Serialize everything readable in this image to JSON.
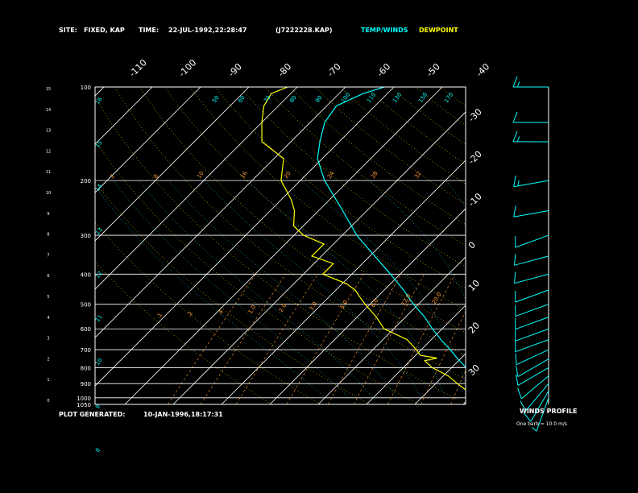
{
  "header": {
    "site_label": "SITE:",
    "site_value": "FIXED, KAP",
    "time_label": "TIME:",
    "time_value": "22-JUL-1992,22:28:47",
    "file": "(J7222228.KAP)",
    "legend_temp": "TEMP/WINDS",
    "legend_dew": "DEWPOINT"
  },
  "footer": {
    "plot_generated_label": "PLOT GENERATED:",
    "plot_generated_value": "10-JAN-1996,18:17:31"
  },
  "wind_panel": {
    "title": "WINDS PROFILE",
    "note": "One barb = 10.0 m/s"
  },
  "colors": {
    "temperature": "#00ffff",
    "dewpoint": "#ffff00",
    "grid": "#ffffff",
    "mixing_ratio": "#ff9933",
    "dry_adiabat": "#ffff00",
    "moist_adiabat": "#00ffff",
    "winds": "#00ffff"
  },
  "chart_data": {
    "type": "line",
    "title": "",
    "xlabel": "",
    "ylabel": "",
    "plot_pressure_range_mb": [
      1050,
      100
    ],
    "pressure_levels_mb": [
      1050,
      1000,
      900,
      800,
      700,
      600,
      500,
      400,
      300,
      200,
      100
    ],
    "pressure_labels": [
      "1050",
      "1000",
      "900",
      "800",
      "700",
      "600",
      "500",
      "400",
      "300",
      "200",
      "100"
    ],
    "height_km_ticks": [
      "0",
      "1",
      "2",
      "3",
      "4",
      "5",
      "6",
      "7",
      "8",
      "9",
      "10",
      "11",
      "12",
      "13",
      "14",
      "15"
    ],
    "isotherm_labels_top": [
      "-110",
      "-100",
      "-90",
      "-80",
      "-70",
      "-60",
      "-50",
      "-40"
    ],
    "isotherm_labels_right": [
      "-30",
      "-20",
      "-10",
      "0",
      "10",
      "20",
      "30"
    ],
    "mixing_ratio_labels": [
      ".1",
      ".2",
      ".4",
      "1.0",
      "2.0",
      "3.0",
      "5.0",
      "8.0",
      "12.0",
      "20.0"
    ],
    "theta_labels_left": [
      "16",
      "15",
      "14",
      "13",
      "12",
      "11",
      "10",
      "9",
      "8"
    ],
    "theta_labels_top": [
      "170",
      "150",
      "130",
      "110",
      "100",
      "90",
      "80",
      "70",
      "60",
      "50"
    ],
    "theta_labels_row200": [
      "2",
      "8",
      "10",
      "16",
      "20",
      "24",
      "28",
      "32"
    ],
    "series": [
      {
        "name": "TEMP/WINDS",
        "pressure_mb": [
          1000,
          950,
          900,
          850,
          800,
          750,
          700,
          650,
          600,
          550,
          500,
          450,
          400,
          350,
          300,
          250,
          200,
          170,
          150,
          130,
          115,
          105,
          100
        ],
        "temp_c": [
          27,
          24,
          20.5,
          16.5,
          13,
          9.5,
          6,
          2,
          -2,
          -6,
          -11,
          -16,
          -22,
          -29,
          -37,
          -45,
          -55,
          -61,
          -64,
          -67,
          -68,
          -65,
          -62
        ]
      },
      {
        "name": "DEWPOINT",
        "pressure_mb": [
          1000,
          950,
          900,
          850,
          800,
          760,
          745,
          730,
          700,
          650,
          600,
          550,
          500,
          470,
          450,
          430,
          400,
          370,
          350,
          320,
          300,
          280,
          250,
          230,
          200,
          170,
          150,
          130,
          115,
          105,
          100
        ],
        "dewpoint_c": [
          21,
          18,
          14.5,
          11,
          6,
          3,
          5,
          1,
          -1,
          -5,
          -12,
          -16,
          -21,
          -24,
          -26,
          -29,
          -36,
          -36,
          -42,
          -42,
          -48,
          -52,
          -55,
          -58,
          -64,
          -68,
          -76,
          -80,
          -83,
          -84,
          -82
        ]
      }
    ]
  },
  "wind_profile": [
    {
      "pressure_mb": 1000,
      "dir_deg": 200,
      "speed_ms": 5
    },
    {
      "pressure_mb": 950,
      "dir_deg": 210,
      "speed_ms": 8
    },
    {
      "pressure_mb": 900,
      "dir_deg": 220,
      "speed_ms": 10
    },
    {
      "pressure_mb": 850,
      "dir_deg": 230,
      "speed_ms": 10
    },
    {
      "pressure_mb": 800,
      "dir_deg": 240,
      "speed_ms": 10
    },
    {
      "pressure_mb": 750,
      "dir_deg": 240,
      "speed_ms": 10
    },
    {
      "pressure_mb": 700,
      "dir_deg": 245,
      "speed_ms": 12
    },
    {
      "pressure_mb": 650,
      "dir_deg": 250,
      "speed_ms": 12
    },
    {
      "pressure_mb": 600,
      "dir_deg": 250,
      "speed_ms": 12
    },
    {
      "pressure_mb": 550,
      "dir_deg": 250,
      "speed_ms": 12
    },
    {
      "pressure_mb": 500,
      "dir_deg": 250,
      "speed_ms": 12
    },
    {
      "pressure_mb": 450,
      "dir_deg": 250,
      "speed_ms": 10
    },
    {
      "pressure_mb": 400,
      "dir_deg": 255,
      "speed_ms": 10
    },
    {
      "pressure_mb": 350,
      "dir_deg": 255,
      "speed_ms": 10
    },
    {
      "pressure_mb": 300,
      "dir_deg": 250,
      "speed_ms": 12
    },
    {
      "pressure_mb": 250,
      "dir_deg": 260,
      "speed_ms": 12
    },
    {
      "pressure_mb": 200,
      "dir_deg": 260,
      "speed_ms": 14
    },
    {
      "pressure_mb": 150,
      "dir_deg": 270,
      "speed_ms": 16
    },
    {
      "pressure_mb": 130,
      "dir_deg": 270,
      "speed_ms": 12
    },
    {
      "pressure_mb": 100,
      "dir_deg": 270,
      "speed_ms": 14
    }
  ]
}
